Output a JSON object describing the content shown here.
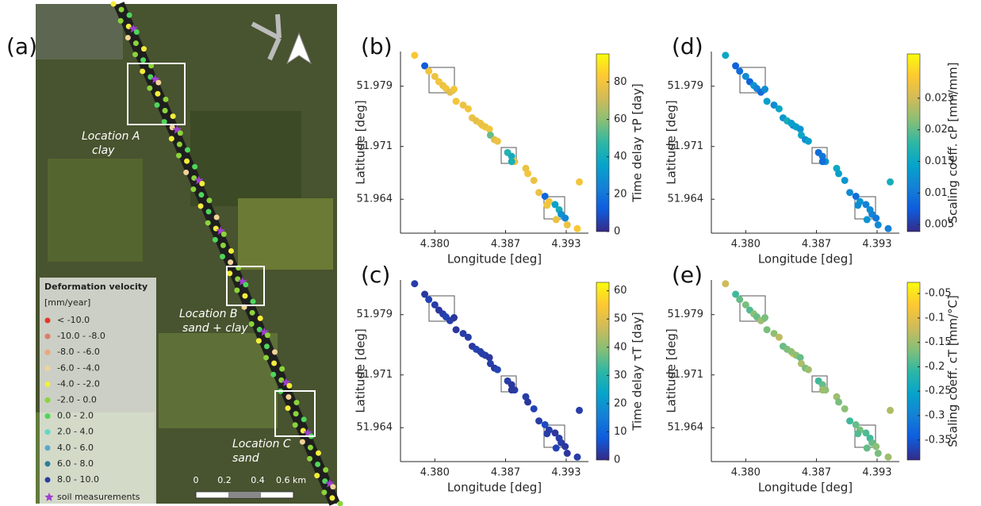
{
  "map": {
    "label": "(a)",
    "locations": [
      {
        "name": "Location A",
        "soil": "clay"
      },
      {
        "name": "Location B",
        "soil": "sand + clay"
      },
      {
        "name": "Location C",
        "soil": "sand"
      }
    ],
    "legend": {
      "title": "Deformation velocity",
      "unit": "[mm/year]",
      "entries": [
        {
          "label": "< -10.0",
          "color": "#e2362b"
        },
        {
          "label": "-10.0 - -8.0",
          "color": "#de7d68"
        },
        {
          "label": "-8.0 - -6.0",
          "color": "#eea67a"
        },
        {
          "label": "-6.0 - -4.0",
          "color": "#f1d399"
        },
        {
          "label": "-4.0 - -2.0",
          "color": "#f3ee3a"
        },
        {
          "label": "-2.0 - 0.0",
          "color": "#8bd43a"
        },
        {
          "label": "0.0 - 2.0",
          "color": "#4fd65a"
        },
        {
          "label": "2.0 - 4.0",
          "color": "#5ed8c8"
        },
        {
          "label": "4.0 - 6.0",
          "color": "#5ba6cf"
        },
        {
          "label": "6.0 - 8.0",
          "color": "#2f7c96"
        },
        {
          "label": "8.0 - 10.0",
          "color": "#2a3f9e"
        }
      ],
      "soil": {
        "label": "soil measurements",
        "color": "#a040d0"
      }
    },
    "scalebar": [
      "0",
      "0.2",
      "0.4",
      "0.6 km"
    ]
  },
  "chart_data": [
    {
      "type": "scatter",
      "label": "(b)",
      "xlabel": "Longitude [deg]",
      "ylabel": "Latitude [deg]",
      "colorbar_label": "Time delay τP [day]",
      "x": [
        4.378,
        4.379,
        4.3794,
        4.38,
        4.3804,
        4.3808,
        4.3811,
        4.3815,
        4.3821,
        4.3828,
        4.3833,
        4.3837,
        4.3841,
        4.3847,
        4.385,
        4.3854,
        4.3855,
        4.3859,
        4.3862,
        4.3872,
        4.3876,
        4.3879,
        4.389,
        4.3892,
        4.3898,
        4.3903,
        4.3909,
        4.3913,
        4.3919,
        4.3923,
        4.3925,
        4.3929,
        4.3943,
        4.3941,
        4.3931,
        4.392,
        4.3911,
        4.3876,
        4.3845,
        4.3819
      ],
      "y": [
        51.9831,
        51.9817,
        51.981,
        51.9803,
        51.9796,
        51.9791,
        51.9787,
        51.9782,
        51.977,
        51.9765,
        51.976,
        51.9748,
        51.9744,
        51.9738,
        51.9736,
        51.9733,
        51.9725,
        51.9719,
        51.9717,
        51.9702,
        51.9697,
        51.969,
        51.9681,
        51.9674,
        51.9665,
        51.9649,
        51.9644,
        51.9637,
        51.9633,
        51.9626,
        51.962,
        51.9615,
        51.9663,
        51.9601,
        51.9606,
        51.9613,
        51.9632,
        51.969,
        51.9741,
        51.9786
      ],
      "values": [
        82,
        12,
        80,
        78,
        80,
        78,
        80,
        76,
        80,
        78,
        80,
        78,
        76,
        80,
        78,
        80,
        55,
        75,
        78,
        45,
        40,
        78,
        78,
        80,
        78,
        78,
        15,
        80,
        35,
        40,
        30,
        25,
        80,
        82,
        78,
        78,
        80,
        42,
        78,
        80
      ],
      "xlim": [
        4.3766,
        4.3952
      ],
      "ylim": [
        51.9595,
        51.9836
      ],
      "xticks": [
        {
          "value": 4.38,
          "label": "4.380"
        },
        {
          "value": 4.387,
          "label": "4.387"
        },
        {
          "value": 4.393,
          "label": "4.393"
        }
      ],
      "yticks": [
        51.964,
        51.971,
        51.979
      ],
      "clim": [
        0,
        95
      ],
      "cticks": [
        0,
        20,
        40,
        60,
        80
      ],
      "colormap": [
        "#352a87",
        "#0f5cdd",
        "#1481d6",
        "#06a4ca",
        "#2eb7a4",
        "#87bf77",
        "#d1bb59",
        "#fec832",
        "#f9fb0e"
      ]
    },
    {
      "type": "scatter",
      "label": "(c)",
      "xlabel": "Longitude [deg]",
      "ylabel": "Latitude [deg]",
      "colorbar_label": "Time delay τT [day]",
      "x": [
        4.378,
        4.379,
        4.3794,
        4.38,
        4.3804,
        4.3808,
        4.3811,
        4.3815,
        4.3821,
        4.3828,
        4.3833,
        4.3837,
        4.3841,
        4.3847,
        4.385,
        4.3854,
        4.3855,
        4.3859,
        4.3862,
        4.3872,
        4.3876,
        4.3879,
        4.389,
        4.3892,
        4.3898,
        4.3903,
        4.3909,
        4.3913,
        4.3919,
        4.3923,
        4.3925,
        4.3929,
        4.3943,
        4.3941,
        4.3931,
        4.392,
        4.3911,
        4.3876,
        4.3845,
        4.3819
      ],
      "y": [
        51.9831,
        51.9817,
        51.981,
        51.9803,
        51.9796,
        51.9791,
        51.9787,
        51.9782,
        51.977,
        51.9765,
        51.976,
        51.9748,
        51.9744,
        51.9738,
        51.9736,
        51.9733,
        51.9725,
        51.9719,
        51.9717,
        51.9702,
        51.9697,
        51.969,
        51.9681,
        51.9674,
        51.9665,
        51.9649,
        51.9644,
        51.9637,
        51.9633,
        51.9626,
        51.962,
        51.9615,
        51.9663,
        51.9601,
        51.9606,
        51.9613,
        51.9632,
        51.969,
        51.9741,
        51.9786
      ],
      "values": [
        3,
        2,
        4,
        3,
        2,
        3,
        4,
        3,
        2,
        3,
        3,
        2,
        4,
        3,
        3,
        2,
        3,
        2,
        4,
        3,
        2,
        3,
        3,
        2,
        4,
        3,
        5,
        3,
        2,
        3,
        3,
        2,
        3,
        3,
        2,
        4,
        3,
        2,
        3,
        2
      ],
      "xlim": [
        4.3766,
        4.3952
      ],
      "ylim": [
        51.9595,
        51.9836
      ],
      "xticks": [
        {
          "value": 4.38,
          "label": "4.380"
        },
        {
          "value": 4.387,
          "label": "4.387"
        },
        {
          "value": 4.393,
          "label": "4.393"
        }
      ],
      "yticks": [
        51.964,
        51.971,
        51.979
      ],
      "clim": [
        0,
        63
      ],
      "cticks": [
        0,
        10,
        20,
        30,
        40,
        50,
        60
      ],
      "colormap": [
        "#352a87",
        "#0f5cdd",
        "#1481d6",
        "#06a4ca",
        "#2eb7a4",
        "#87bf77",
        "#d1bb59",
        "#fec832",
        "#f9fb0e"
      ]
    },
    {
      "type": "scatter",
      "label": "(d)",
      "xlabel": "Longitude [deg]",
      "ylabel": "Latitude [deg]",
      "colorbar_label": "Scaling coeff. cP [mm/mm]",
      "x": [
        4.378,
        4.379,
        4.3794,
        4.38,
        4.3804,
        4.3808,
        4.3811,
        4.3815,
        4.3821,
        4.3828,
        4.3833,
        4.3837,
        4.3841,
        4.3847,
        4.385,
        4.3854,
        4.3855,
        4.3859,
        4.3862,
        4.3872,
        4.3876,
        4.3879,
        4.389,
        4.3892,
        4.3898,
        4.3903,
        4.3909,
        4.3913,
        4.3919,
        4.3923,
        4.3925,
        4.3929,
        4.3943,
        4.3941,
        4.3931,
        4.392,
        4.3911,
        4.3876,
        4.3845,
        4.3819
      ],
      "y": [
        51.9831,
        51.9817,
        51.981,
        51.9803,
        51.9796,
        51.9791,
        51.9787,
        51.9782,
        51.977,
        51.9765,
        51.976,
        51.9748,
        51.9744,
        51.9738,
        51.9736,
        51.9733,
        51.9725,
        51.9719,
        51.9717,
        51.9702,
        51.9697,
        51.969,
        51.9681,
        51.9674,
        51.9665,
        51.9649,
        51.9644,
        51.9637,
        51.9633,
        51.9626,
        51.962,
        51.9615,
        51.9663,
        51.9601,
        51.9606,
        51.9613,
        51.9632,
        51.969,
        51.9741,
        51.9786
      ],
      "values": [
        0.015,
        0.008,
        0.009,
        0.012,
        0.008,
        0.013,
        0.011,
        0.009,
        0.014,
        0.012,
        0.015,
        0.013,
        0.016,
        0.011,
        0.014,
        0.013,
        0.015,
        0.012,
        0.014,
        0.009,
        0.01,
        0.013,
        0.015,
        0.014,
        0.013,
        0.012,
        0.009,
        0.013,
        0.011,
        0.012,
        0.011,
        0.01,
        0.016,
        0.011,
        0.012,
        0.013,
        0.012,
        0.009,
        0.014,
        0.012
      ],
      "xlim": [
        4.3766,
        4.3952
      ],
      "ylim": [
        51.9595,
        51.9836
      ],
      "xticks": [
        {
          "value": 4.38,
          "label": "4.380"
        },
        {
          "value": 4.387,
          "label": "4.387"
        },
        {
          "value": 4.393,
          "label": "4.393"
        }
      ],
      "yticks": [
        51.964,
        51.971,
        51.979
      ],
      "clim": [
        0.0039,
        0.032
      ],
      "cticks": [
        0.005,
        0.01,
        0.015,
        0.02,
        0.025
      ],
      "colormap": [
        "#352a87",
        "#0f5cdd",
        "#1481d6",
        "#06a4ca",
        "#2eb7a4",
        "#87bf77",
        "#d1bb59",
        "#fec832",
        "#f9fb0e"
      ]
    },
    {
      "type": "scatter",
      "label": "(e)",
      "xlabel": "Longitude [deg]",
      "ylabel": "Latitude [deg]",
      "colorbar_label": "Scaling coeff. cT [mm/°C]",
      "x": [
        4.378,
        4.379,
        4.3794,
        4.38,
        4.3804,
        4.3808,
        4.3811,
        4.3815,
        4.3821,
        4.3828,
        4.3833,
        4.3837,
        4.3841,
        4.3847,
        4.385,
        4.3854,
        4.3855,
        4.3859,
        4.3862,
        4.3872,
        4.3876,
        4.3879,
        4.389,
        4.3892,
        4.3898,
        4.3903,
        4.3909,
        4.3913,
        4.3919,
        4.3923,
        4.3925,
        4.3929,
        4.3943,
        4.3941,
        4.3931,
        4.392,
        4.3911,
        4.3876,
        4.3845,
        4.3819
      ],
      "y": [
        51.9831,
        51.9817,
        51.981,
        51.9803,
        51.9796,
        51.9791,
        51.9787,
        51.9782,
        51.977,
        51.9765,
        51.976,
        51.9748,
        51.9744,
        51.9738,
        51.9736,
        51.9733,
        51.9725,
        51.9719,
        51.9717,
        51.9702,
        51.9697,
        51.969,
        51.9681,
        51.9674,
        51.9665,
        51.9649,
        51.9644,
        51.9637,
        51.9633,
        51.9626,
        51.962,
        51.9615,
        51.9663,
        51.9601,
        51.9606,
        51.9613,
        51.9632,
        51.969,
        51.9741,
        51.9786
      ],
      "values": [
        -0.12,
        -0.2,
        -0.18,
        -0.17,
        -0.19,
        -0.16,
        -0.18,
        -0.15,
        -0.17,
        -0.16,
        -0.13,
        -0.18,
        -0.17,
        -0.1,
        -0.16,
        -0.18,
        -0.14,
        -0.17,
        -0.15,
        -0.2,
        -0.18,
        -0.16,
        -0.15,
        -0.17,
        -0.16,
        -0.2,
        -0.18,
        -0.17,
        -0.19,
        -0.2,
        -0.18,
        -0.16,
        -0.14,
        -0.15,
        -0.17,
        -0.18,
        -0.19,
        -0.15,
        -0.16,
        -0.17
      ],
      "xlim": [
        4.3766,
        4.3952
      ],
      "ylim": [
        51.9595,
        51.9836
      ],
      "xticks": [
        {
          "value": 4.38,
          "label": "4.380"
        },
        {
          "value": 4.387,
          "label": "4.387"
        },
        {
          "value": 4.393,
          "label": "4.393"
        }
      ],
      "yticks": [
        51.964,
        51.971,
        51.979
      ],
      "clim": [
        -0.391,
        -0.027
      ],
      "cticks": [
        -0.35,
        -0.3,
        -0.25,
        -0.2,
        -0.15,
        -0.1,
        -0.05
      ],
      "colormap": [
        "#352a87",
        "#0f5cdd",
        "#1481d6",
        "#06a4ca",
        "#2eb7a4",
        "#87bf77",
        "#d1bb59",
        "#fec832",
        "#f9fb0e"
      ]
    }
  ]
}
